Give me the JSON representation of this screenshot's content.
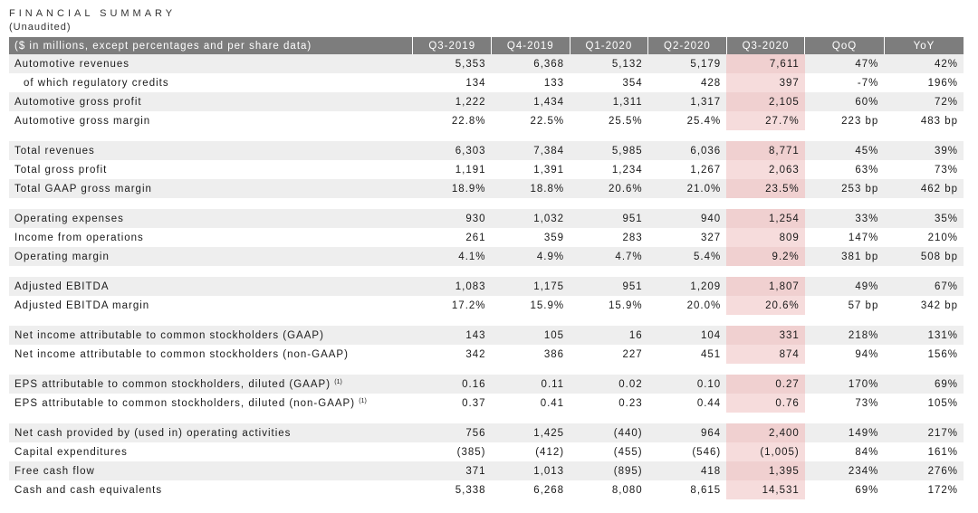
{
  "title": "FINANCIAL SUMMARY",
  "subtitle": "(Unaudited)",
  "header": [
    "($ in millions, except percentages and per share data)",
    "Q3-2019",
    "Q4-2019",
    "Q1-2020",
    "Q2-2020",
    "Q3-2020",
    "QoQ",
    "YoY"
  ],
  "rows": [
    {
      "label": "Automotive revenues",
      "values": [
        "5,353",
        "6,368",
        "5,132",
        "5,179",
        "7,611",
        "47%",
        "42%"
      ]
    },
    {
      "label": "of which regulatory credits",
      "values": [
        "134",
        "133",
        "354",
        "428",
        "397",
        "-7%",
        "196%"
      ]
    },
    {
      "label": "Automotive gross profit",
      "values": [
        "1,222",
        "1,434",
        "1,311",
        "1,317",
        "2,105",
        "60%",
        "72%"
      ]
    },
    {
      "label": "Automotive gross margin",
      "values": [
        "22.8%",
        "22.5%",
        "25.5%",
        "25.4%",
        "27.7%",
        "223 bp",
        "483 bp"
      ]
    },
    {
      "label": "Total revenues",
      "values": [
        "6,303",
        "7,384",
        "5,985",
        "6,036",
        "8,771",
        "45%",
        "39%"
      ]
    },
    {
      "label": "Total gross profit",
      "values": [
        "1,191",
        "1,391",
        "1,234",
        "1,267",
        "2,063",
        "63%",
        "73%"
      ]
    },
    {
      "label": "Total GAAP gross margin",
      "values": [
        "18.9%",
        "18.8%",
        "20.6%",
        "21.0%",
        "23.5%",
        "253 bp",
        "462 bp"
      ]
    },
    {
      "label": "Operating expenses",
      "values": [
        "930",
        "1,032",
        "951",
        "940",
        "1,254",
        "33%",
        "35%"
      ]
    },
    {
      "label": "Income from operations",
      "values": [
        "261",
        "359",
        "283",
        "327",
        "809",
        "147%",
        "210%"
      ]
    },
    {
      "label": "Operating margin",
      "values": [
        "4.1%",
        "4.9%",
        "4.7%",
        "5.4%",
        "9.2%",
        "381 bp",
        "508 bp"
      ]
    },
    {
      "label": "Adjusted EBITDA",
      "values": [
        "1,083",
        "1,175",
        "951",
        "1,209",
        "1,807",
        "49%",
        "67%"
      ]
    },
    {
      "label": "Adjusted EBITDA margin",
      "values": [
        "17.2%",
        "15.9%",
        "15.9%",
        "20.0%",
        "20.6%",
        "57 bp",
        "342 bp"
      ]
    },
    {
      "label": "Net income attributable to common stockholders (GAAP)",
      "values": [
        "143",
        "105",
        "16",
        "104",
        "331",
        "218%",
        "131%"
      ]
    },
    {
      "label": "Net income attributable to common stockholders (non-GAAP)",
      "values": [
        "342",
        "386",
        "227",
        "451",
        "874",
        "94%",
        "156%"
      ]
    },
    {
      "label": "EPS attributable to common stockholders, diluted (GAAP)",
      "footnote": "(1)",
      "values": [
        "0.16",
        "0.11",
        "0.02",
        "0.10",
        "0.27",
        "170%",
        "69%"
      ]
    },
    {
      "label": "EPS attributable to common stockholders, diluted (non-GAAP)",
      "footnote": "(1)",
      "values": [
        "0.37",
        "0.41",
        "0.23",
        "0.44",
        "0.76",
        "73%",
        "105%"
      ]
    },
    {
      "label": "Net cash provided by (used in) operating activities",
      "values": [
        "756",
        "1,425",
        "(440)",
        "964",
        "2,400",
        "149%",
        "217%"
      ]
    },
    {
      "label": "Capital expenditures",
      "values": [
        "(385)",
        "(412)",
        "(455)",
        "(546)",
        "(1,005)",
        "84%",
        "161%"
      ]
    },
    {
      "label": "Free cash flow",
      "values": [
        "371",
        "1,013",
        "(895)",
        "418",
        "1,395",
        "234%",
        "276%"
      ]
    },
    {
      "label": "Cash and cash equivalents",
      "values": [
        "5,338",
        "6,268",
        "8,080",
        "8,615",
        "14,531",
        "69%",
        "172%"
      ]
    }
  ],
  "colors": {
    "header_bg": "#7d7d7d",
    "stripe": "#eeeeee",
    "highlight": "#f6dcdc"
  }
}
